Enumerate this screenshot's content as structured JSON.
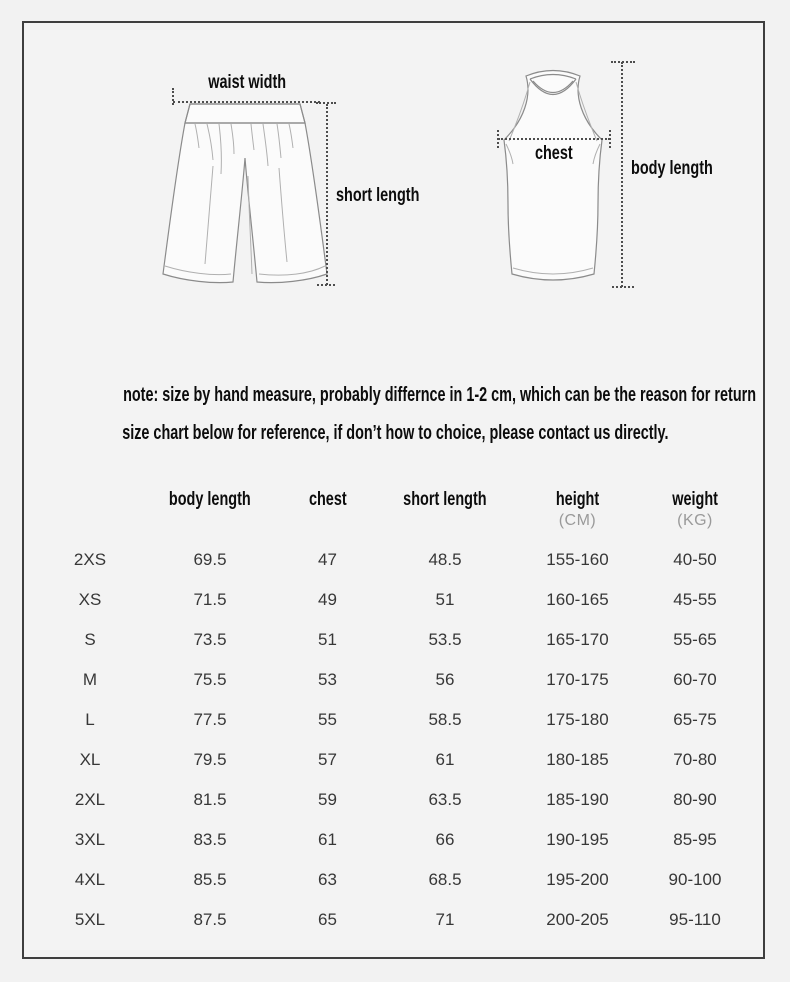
{
  "colors": {
    "background": "#f2f2f2",
    "frame_border": "#3e3e3e",
    "heading_text": "#0c0c0c",
    "table_text": "#373737",
    "unit_text": "#9a9a9a",
    "dotted_guide": "#4d4d4d",
    "sketch_stroke": "#8b8b8b"
  },
  "diagram": {
    "shorts": {
      "waist_label": "waist width",
      "length_label": "short length"
    },
    "vest": {
      "chest_label": "chest",
      "length_label": "body length"
    }
  },
  "note": {
    "line1": "note: size by hand measure, probably differnce in 1-2 cm, which can be the reason for return",
    "line2": "size chart below for reference, if don’t how to choice, please contact us directly."
  },
  "table": {
    "columns": [
      {
        "key": "size",
        "label": "",
        "unit": ""
      },
      {
        "key": "body_length",
        "label": "body length",
        "unit": ""
      },
      {
        "key": "chest",
        "label": "chest",
        "unit": ""
      },
      {
        "key": "short_length",
        "label": "short length",
        "unit": ""
      },
      {
        "key": "height",
        "label": "height",
        "unit": "(CM)"
      },
      {
        "key": "weight",
        "label": "weight",
        "unit": "(KG)"
      }
    ],
    "rows": [
      {
        "size": "2XS",
        "body_length": "69.5",
        "chest": "47",
        "short_length": "48.5",
        "height": "155-160",
        "weight": "40-50"
      },
      {
        "size": "XS",
        "body_length": "71.5",
        "chest": "49",
        "short_length": "51",
        "height": "160-165",
        "weight": "45-55"
      },
      {
        "size": "S",
        "body_length": "73.5",
        "chest": "51",
        "short_length": "53.5",
        "height": "165-170",
        "weight": "55-65"
      },
      {
        "size": "M",
        "body_length": "75.5",
        "chest": "53",
        "short_length": "56",
        "height": "170-175",
        "weight": "60-70"
      },
      {
        "size": "L",
        "body_length": "77.5",
        "chest": "55",
        "short_length": "58.5",
        "height": "175-180",
        "weight": "65-75"
      },
      {
        "size": "XL",
        "body_length": "79.5",
        "chest": "57",
        "short_length": "61",
        "height": "180-185",
        "weight": "70-80"
      },
      {
        "size": "2XL",
        "body_length": "81.5",
        "chest": "59",
        "short_length": "63.5",
        "height": "185-190",
        "weight": "80-90"
      },
      {
        "size": "3XL",
        "body_length": "83.5",
        "chest": "61",
        "short_length": "66",
        "height": "190-195",
        "weight": "85-95"
      },
      {
        "size": "4XL",
        "body_length": "85.5",
        "chest": "63",
        "short_length": "68.5",
        "height": "195-200",
        "weight": "90-100"
      },
      {
        "size": "5XL",
        "body_length": "87.5",
        "chest": "65",
        "short_length": "71",
        "height": "200-205",
        "weight": "95-110"
      }
    ]
  }
}
